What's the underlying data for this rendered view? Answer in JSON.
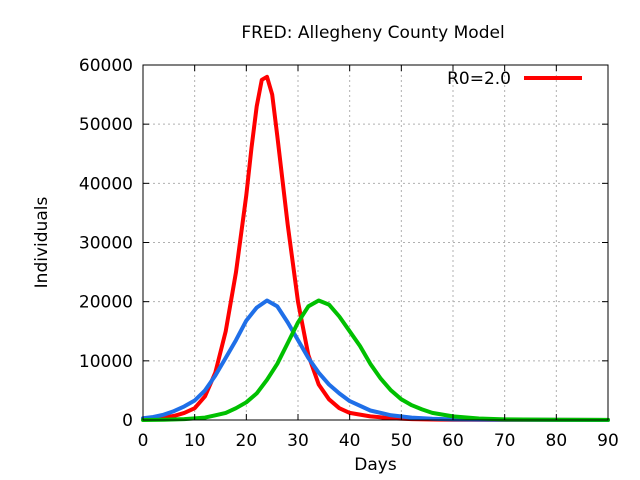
{
  "chart_data": {
    "type": "line",
    "title": "FRED: Allegheny County Model",
    "xlabel": "Days",
    "ylabel": "Individuals",
    "xlim": [
      0,
      90
    ],
    "ylim": [
      0,
      60000
    ],
    "xticks": [
      0,
      10,
      20,
      30,
      40,
      50,
      60,
      70,
      80,
      90
    ],
    "yticks": [
      0,
      10000,
      20000,
      30000,
      40000,
      50000,
      60000
    ],
    "grid": true,
    "legend_position": "top-right",
    "series": [
      {
        "name": "R0=2.0",
        "color": "#ff0000",
        "x": [
          0,
          2,
          4,
          6,
          8,
          10,
          12,
          14,
          16,
          18,
          20,
          21,
          22,
          23,
          24,
          25,
          26,
          28,
          30,
          32,
          34,
          36,
          38,
          40,
          44,
          48,
          52,
          56,
          60,
          70,
          80,
          90
        ],
        "y": [
          100,
          200,
          400,
          700,
          1200,
          2000,
          4000,
          8000,
          15000,
          25000,
          38000,
          46000,
          53000,
          57500,
          58000,
          55000,
          48000,
          33000,
          20000,
          11000,
          6000,
          3500,
          2000,
          1200,
          600,
          300,
          150,
          80,
          50,
          20,
          10,
          5
        ]
      },
      {
        "color": "#1f6fe8",
        "x": [
          0,
          2,
          4,
          6,
          8,
          10,
          12,
          14,
          16,
          18,
          20,
          22,
          24,
          26,
          28,
          30,
          32,
          34,
          36,
          38,
          40,
          44,
          48,
          52,
          56,
          60,
          70,
          80,
          90
        ],
        "y": [
          300,
          500,
          900,
          1500,
          2300,
          3300,
          5000,
          7500,
          10500,
          13500,
          16800,
          19000,
          20200,
          19200,
          16500,
          13500,
          10500,
          8000,
          6000,
          4500,
          3200,
          1600,
          800,
          400,
          200,
          100,
          30,
          10,
          5
        ]
      },
      {
        "color": "#00c000",
        "x": [
          0,
          4,
          8,
          12,
          14,
          16,
          18,
          20,
          22,
          24,
          26,
          28,
          30,
          32,
          34,
          36,
          38,
          40,
          42,
          44,
          46,
          48,
          50,
          52,
          54,
          56,
          60,
          65,
          70,
          80,
          90
        ],
        "y": [
          0,
          50,
          150,
          400,
          800,
          1200,
          2000,
          3000,
          4500,
          6800,
          9500,
          13000,
          16500,
          19200,
          20200,
          19500,
          17500,
          15000,
          12500,
          9500,
          7000,
          5000,
          3500,
          2500,
          1800,
          1200,
          600,
          250,
          100,
          30,
          10
        ]
      }
    ]
  }
}
